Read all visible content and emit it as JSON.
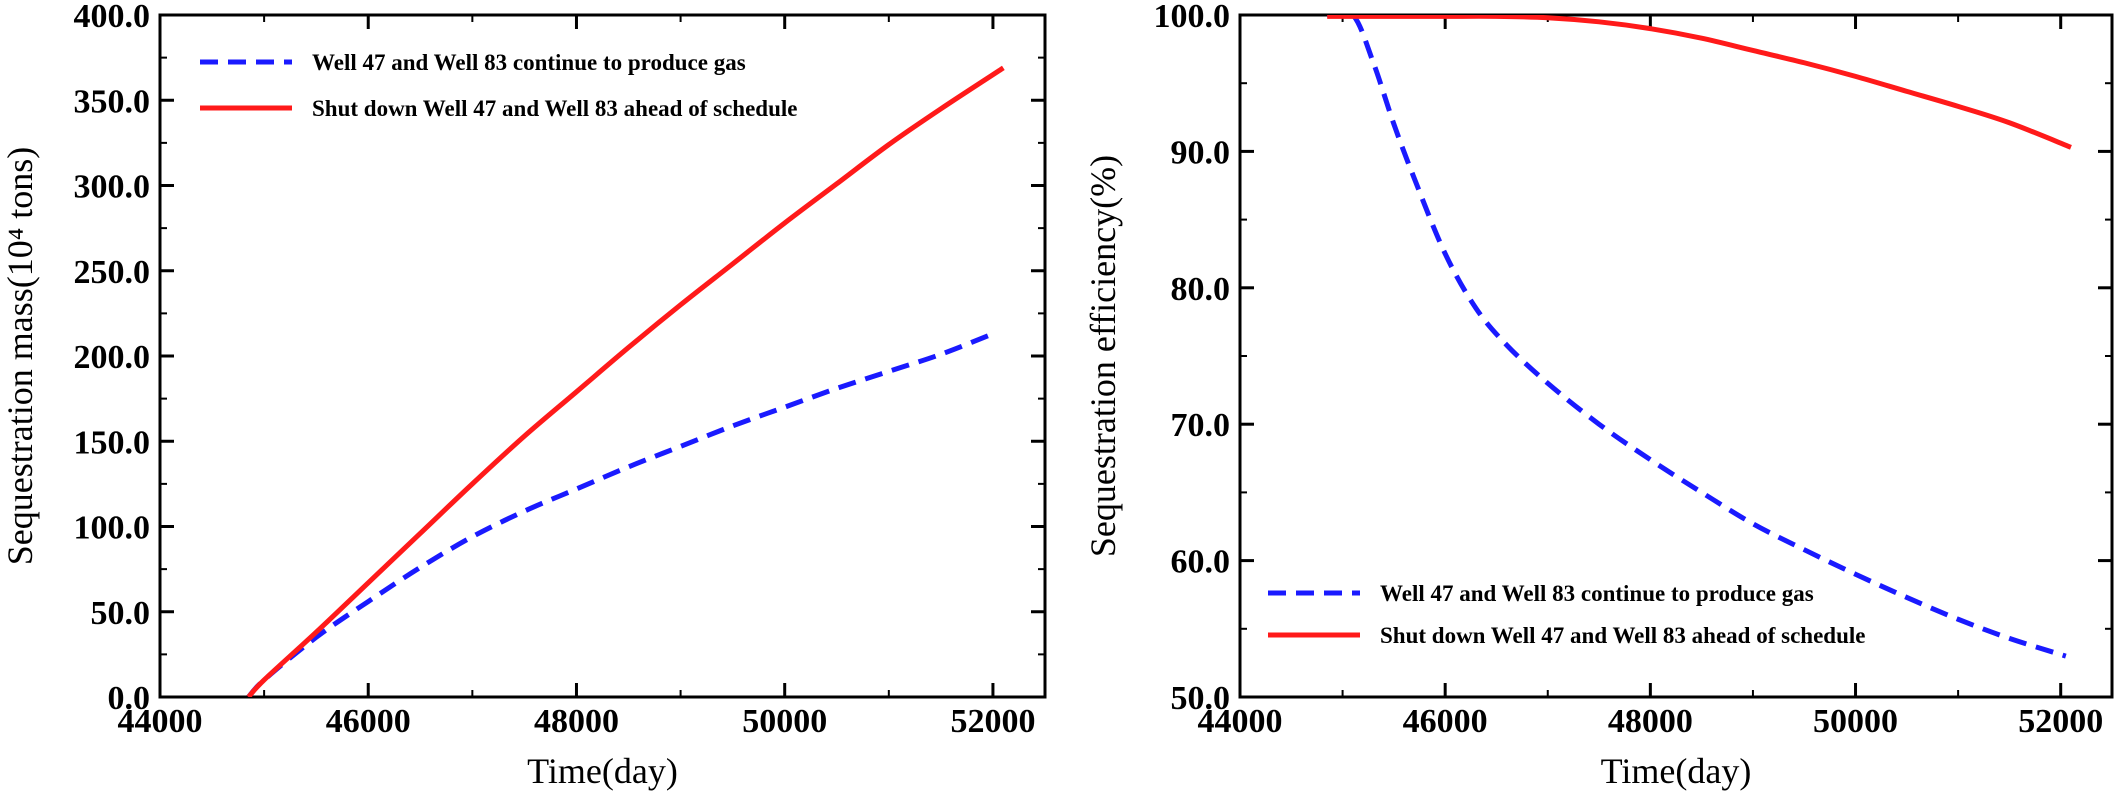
{
  "chart_data": [
    {
      "type": "line",
      "xlabel": "Time(day)",
      "ylabel": "Sequestration mass(10⁴ tons)",
      "xlim": [
        44000,
        52500
      ],
      "ylim": [
        0,
        400
      ],
      "xticks": [
        "44000",
        "46000",
        "48000",
        "50000",
        "52000"
      ],
      "yticks": [
        "0.0",
        "50.0",
        "100.0",
        "150.0",
        "200.0",
        "250.0",
        "300.0",
        "350.0",
        "400.0"
      ],
      "legend_position": "top-left",
      "series": [
        {
          "name": "Well 47 and Well 83 continue to produce gas",
          "color": "#1a1aff",
          "style": "dashed",
          "x": [
            44850,
            45000,
            45500,
            46000,
            46500,
            47000,
            47500,
            48000,
            48500,
            49000,
            49500,
            50000,
            50500,
            51000,
            51500,
            52000
          ],
          "y": [
            0,
            10,
            35,
            56,
            76,
            94,
            109,
            122,
            135,
            147,
            159,
            170,
            181,
            191,
            201,
            213
          ]
        },
        {
          "name": "Shut down Well 47 and Well 83 ahead of schedule",
          "color": "#ff1a1a",
          "style": "solid",
          "x": [
            44850,
            45000,
            45500,
            46000,
            46500,
            47000,
            47500,
            48000,
            48500,
            49000,
            49500,
            50000,
            50500,
            51000,
            51500,
            52100
          ],
          "y": [
            0,
            10,
            38,
            67,
            96,
            125,
            153,
            179,
            205,
            230,
            254,
            278,
            301,
            324,
            345,
            369
          ]
        }
      ]
    },
    {
      "type": "line",
      "xlabel": "Time(day)",
      "ylabel": "Sequestration efficiency(%)",
      "xlim": [
        44000,
        52500
      ],
      "ylim": [
        50,
        100
      ],
      "xticks": [
        "44000",
        "46000",
        "48000",
        "50000",
        "52000"
      ],
      "yticks": [
        "50.0",
        "60.0",
        "70.0",
        "80.0",
        "90.0",
        "100.0"
      ],
      "legend_position": "bottom-left",
      "series": [
        {
          "name": "Well 47 and Well 83 continue to produce gas",
          "color": "#1a1aff",
          "style": "dashed",
          "x": [
            44850,
            45100,
            45300,
            45500,
            45700,
            46000,
            46300,
            46600,
            47000,
            47500,
            48000,
            48500,
            49000,
            49500,
            50000,
            50500,
            51000,
            51500,
            52050
          ],
          "y": [
            100,
            100,
            96.5,
            92,
            88,
            82.5,
            78.5,
            75.8,
            73,
            70,
            67.4,
            65,
            62.7,
            60.8,
            59,
            57.3,
            55.7,
            54.3,
            53
          ]
        },
        {
          "name": "Shut down Well 47 and Well 83 ahead of schedule",
          "color": "#ff1a1a",
          "style": "solid",
          "x": [
            44850,
            45500,
            46000,
            46500,
            47000,
            47500,
            48000,
            48500,
            49000,
            49500,
            50000,
            50500,
            51000,
            51500,
            52100
          ],
          "y": [
            99.9,
            99.9,
            99.9,
            99.9,
            99.8,
            99.5,
            99,
            98.3,
            97.4,
            96.5,
            95.5,
            94.4,
            93.3,
            92.1,
            90.3
          ]
        }
      ]
    }
  ]
}
